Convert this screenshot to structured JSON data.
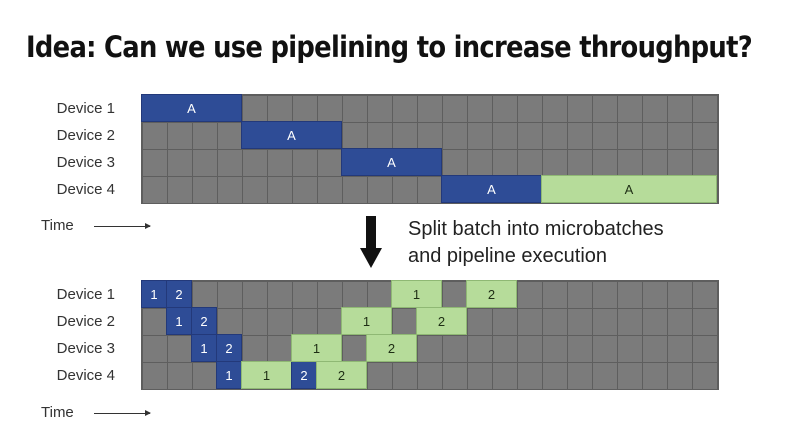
{
  "title": "Idea: Can we use pipelining to increase throughput?",
  "top_diagram": {
    "devices": [
      "Device 1",
      "Device 2",
      "Device 3",
      "Device 4"
    ],
    "time_label": "Time",
    "columns": 23,
    "blocks": [
      {
        "row": 0,
        "start": 0,
        "span": 4,
        "label": "A",
        "kind": "forward"
      },
      {
        "row": 1,
        "start": 4,
        "span": 4,
        "label": "A",
        "kind": "forward"
      },
      {
        "row": 2,
        "start": 8,
        "span": 4,
        "label": "A",
        "kind": "forward"
      },
      {
        "row": 3,
        "start": 12,
        "span": 4,
        "label": "A",
        "kind": "forward"
      },
      {
        "row": 3,
        "start": 16,
        "span": 7,
        "label": "A",
        "kind": "backward"
      }
    ]
  },
  "transition": {
    "icon": "down-arrow-icon",
    "line1": "Split batch into microbatches",
    "line2": "and pipeline execution"
  },
  "bottom_diagram": {
    "devices": [
      "Device 1",
      "Device 2",
      "Device 3",
      "Device 4"
    ],
    "time_label": "Time",
    "columns": 23,
    "blocks": [
      {
        "row": 0,
        "start": 0,
        "span": 1,
        "label": "1",
        "kind": "forward"
      },
      {
        "row": 0,
        "start": 1,
        "span": 1,
        "label": "2",
        "kind": "forward"
      },
      {
        "row": 1,
        "start": 1,
        "span": 1,
        "label": "1",
        "kind": "forward"
      },
      {
        "row": 1,
        "start": 2,
        "span": 1,
        "label": "2",
        "kind": "forward"
      },
      {
        "row": 2,
        "start": 2,
        "span": 1,
        "label": "1",
        "kind": "forward"
      },
      {
        "row": 2,
        "start": 3,
        "span": 1,
        "label": "2",
        "kind": "forward"
      },
      {
        "row": 3,
        "start": 3,
        "span": 1,
        "label": "1",
        "kind": "forward"
      },
      {
        "row": 3,
        "start": 4,
        "span": 2,
        "label": "1",
        "kind": "backward"
      },
      {
        "row": 3,
        "start": 6,
        "span": 1,
        "label": "2",
        "kind": "forward"
      },
      {
        "row": 3,
        "start": 7,
        "span": 2,
        "label": "2",
        "kind": "backward"
      },
      {
        "row": 2,
        "start": 6,
        "span": 2,
        "label": "1",
        "kind": "backward"
      },
      {
        "row": 2,
        "start": 9,
        "span": 2,
        "label": "2",
        "kind": "backward"
      },
      {
        "row": 1,
        "start": 8,
        "span": 2,
        "label": "1",
        "kind": "backward"
      },
      {
        "row": 1,
        "start": 11,
        "span": 2,
        "label": "2",
        "kind": "backward"
      },
      {
        "row": 0,
        "start": 10,
        "span": 2,
        "label": "1",
        "kind": "backward"
      },
      {
        "row": 0,
        "start": 13,
        "span": 2,
        "label": "2",
        "kind": "backward"
      }
    ]
  },
  "colors": {
    "forward": "#2e4c96",
    "backward": "#b6dc9a",
    "idle_cell": "#7b7b7b",
    "grid_line": "#5e5e5e"
  }
}
